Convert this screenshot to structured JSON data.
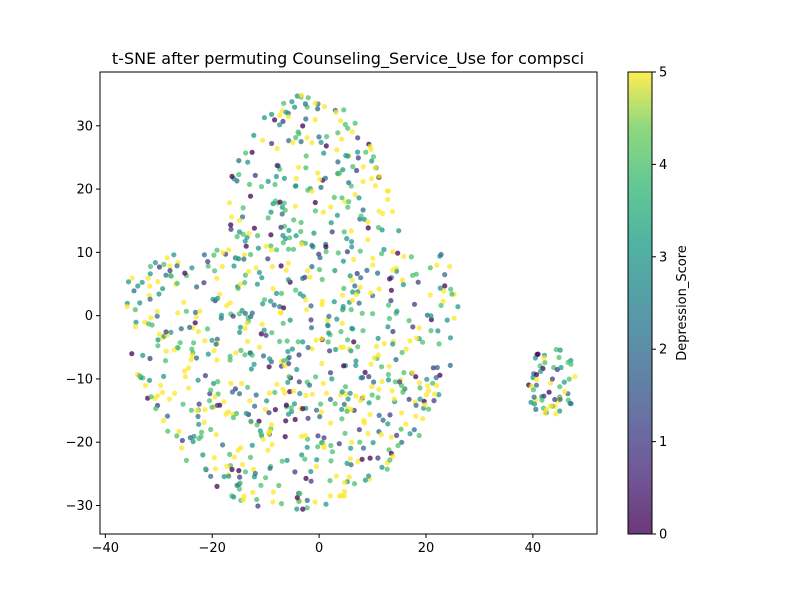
{
  "chart_data": {
    "type": "scatter",
    "title": "t-SNE after permuting Counseling_Service_Use for compsci",
    "xlabel": "",
    "ylabel": "",
    "xlim": [
      -41,
      52
    ],
    "ylim": [
      -34.5,
      38.5
    ],
    "xticks": [
      -40,
      -20,
      0,
      20,
      40
    ],
    "yticks": [
      -30,
      -20,
      -10,
      0,
      10,
      20,
      30
    ],
    "grid": false,
    "legend": "none",
    "colorbar": {
      "label": "Depression_Score",
      "range": [
        0,
        5
      ],
      "ticks": [
        0,
        1,
        2,
        3,
        4,
        5
      ],
      "colormap": "viridis",
      "alpha": 0.75
    },
    "main_cluster": {
      "center_x": -4,
      "center_y": 2,
      "x_range": [
        -37,
        27
      ],
      "y_range": [
        -31.5,
        35
      ],
      "approx_points": 900
    },
    "small_cluster": {
      "center_x": 43.5,
      "center_y": -10.5,
      "x_range": [
        38.5,
        48
      ],
      "y_range": [
        -15.5,
        -4.5
      ],
      "approx_points": 60
    },
    "value_distribution": {
      "dominant_values": [
        4,
        5,
        3
      ],
      "minor_values": [
        0,
        1,
        2
      ]
    },
    "colors": {
      "v0": "#440154",
      "v1": "#3b528b",
      "v2": "#21918c",
      "v3": "#35b779",
      "v4": "#90d743",
      "v5": "#fde725"
    }
  }
}
